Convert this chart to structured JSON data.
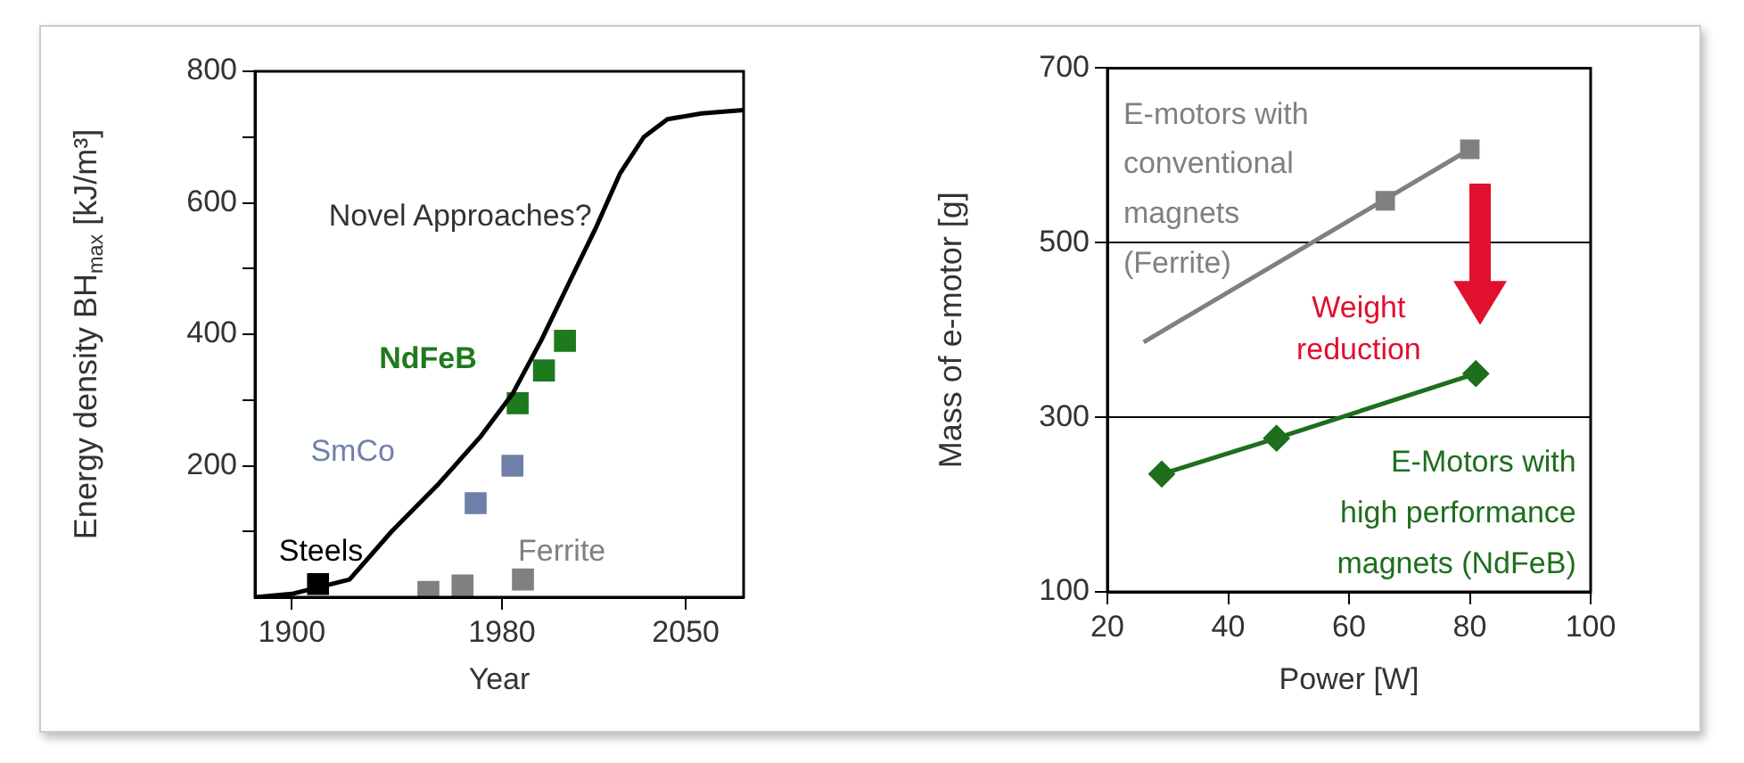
{
  "chart_data": [
    {
      "type": "line",
      "xlabel": "Year",
      "ylabel": "Energy density BH$_{max}$ [kJ/m³]",
      "xlim": [
        1886,
        2072
      ],
      "xticks": [
        1900,
        1980,
        2050
      ],
      "ylim": [
        0,
        800
      ],
      "yticks": [
        {
          "value": 100,
          "label": null
        },
        200,
        {
          "value": 300,
          "label": null
        },
        400,
        {
          "value": 500,
          "label": null
        },
        600,
        {
          "value": 700,
          "label": null
        },
        800
      ],
      "grid": false,
      "legend": false,
      "annotations": [
        "Novel Approaches?"
      ],
      "series": [
        {
          "type": "line",
          "color": "#000000",
          "marker": "none",
          "x": [
            1886,
            1900,
            1922,
            1938,
            1956,
            1972,
            1984,
            1995,
            2006,
            2016,
            2025,
            2034,
            2043,
            2056,
            2072
          ],
          "values": [
            0,
            5,
            27,
            100,
            173,
            245,
            309,
            391,
            482,
            564,
            645,
            700,
            727,
            736,
            741
          ]
        },
        {
          "type": "scatter",
          "name": "Steels",
          "color": "#000000",
          "marker": "square",
          "x": [
            1910
          ],
          "values": [
            20
          ]
        },
        {
          "type": "scatter",
          "name": "Ferrite",
          "color": "#808080",
          "marker": "square",
          "x": [
            1952,
            1965,
            1988
          ],
          "values": [
            8,
            18,
            27
          ]
        },
        {
          "type": "scatter",
          "name": "SmCo",
          "color": "#6f80a8",
          "marker": "square",
          "x": [
            1970,
            1984
          ],
          "values": [
            143,
            200
          ]
        },
        {
          "type": "scatter",
          "name": "NdFeB",
          "color": "#1e7a1e",
          "marker": "square",
          "x": [
            1986,
            1996,
            2004
          ],
          "values": [
            295,
            345,
            390
          ]
        }
      ]
    },
    {
      "type": "line",
      "xlabel": "Power [W]",
      "ylabel": "Mass of e-motor [g]",
      "xlim": [
        20,
        100
      ],
      "xticks": [
        20,
        40,
        60,
        80,
        100
      ],
      "ylim": [
        100,
        700
      ],
      "yticks": [
        100,
        300,
        500,
        700
      ],
      "grid": "y",
      "legend": false,
      "annotations": [
        "Weight reduction"
      ],
      "series": [
        {
          "type": "line",
          "color": "#808080",
          "marker": "none",
          "x": [
            26,
            80
          ],
          "values": [
            386,
            607
          ]
        },
        {
          "type": "scatter",
          "name": "E-motors with conventional magnets (Ferrite)",
          "color": "#808080",
          "marker": "square",
          "x": [
            66,
            80
          ],
          "values": [
            548,
            607
          ]
        },
        {
          "type": "line",
          "name": "E-Motors with high performance magnets (NdFeB)",
          "color": "#1e6e1e",
          "marker": "diamond",
          "x": [
            29,
            48,
            81
          ],
          "values": [
            235,
            276,
            350
          ]
        }
      ]
    }
  ]
}
